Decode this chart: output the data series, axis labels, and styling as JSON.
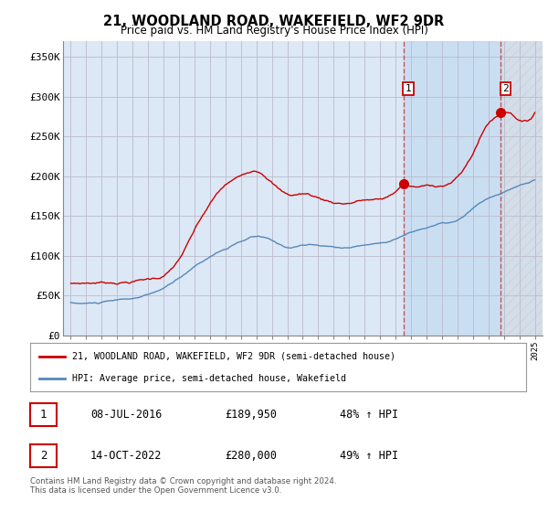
{
  "title": "21, WOODLAND ROAD, WAKEFIELD, WF2 9DR",
  "subtitle": "Price paid vs. HM Land Registry's House Price Index (HPI)",
  "ylabel_ticks": [
    "£0",
    "£50K",
    "£100K",
    "£150K",
    "£200K",
    "£250K",
    "£300K",
    "£350K"
  ],
  "ytick_values": [
    0,
    50000,
    100000,
    150000,
    200000,
    250000,
    300000,
    350000
  ],
  "ylim": [
    0,
    370000
  ],
  "xlim_start": 1994.5,
  "xlim_end": 2025.5,
  "sale1_date": 2016.52,
  "sale1_price": 189950,
  "sale1_label": "1",
  "sale2_date": 2022.79,
  "sale2_price": 280000,
  "sale2_label": "2",
  "line_color_red": "#cc0000",
  "line_color_blue": "#5588bb",
  "dashed_line_color": "#cc3333",
  "legend1_text": "21, WOODLAND ROAD, WAKEFIELD, WF2 9DR (semi-detached house)",
  "legend2_text": "HPI: Average price, semi-detached house, Wakefield",
  "table_row1": [
    "1",
    "08-JUL-2016",
    "£189,950",
    "48% ↑ HPI"
  ],
  "table_row2": [
    "2",
    "14-OCT-2022",
    "£280,000",
    "49% ↑ HPI"
  ],
  "footer": "Contains HM Land Registry data © Crown copyright and database right 2024.\nThis data is licensed under the Open Government Licence v3.0.",
  "background_color": "#ffffff",
  "plot_bg_color": "#dce8f5",
  "grid_color": "#bbbbcc",
  "shade_between_color": "#c8ddf0"
}
